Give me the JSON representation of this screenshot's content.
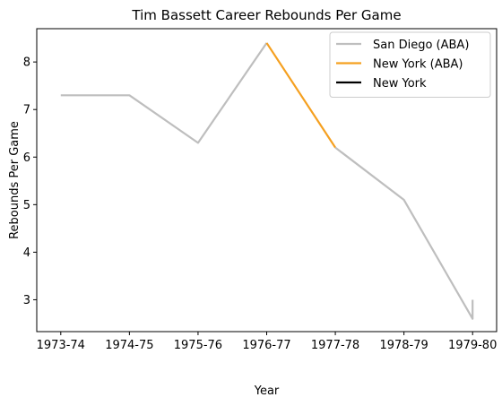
{
  "chart_data": {
    "type": "line",
    "title": "Tim Bassett Career Rebounds Per Game",
    "xlabel": "Year",
    "ylabel": "Rebounds Per Game",
    "categories": [
      "1973-74",
      "1974-75",
      "1975-76",
      "1976-77",
      "1977-78",
      "1978-79",
      "1979-80"
    ],
    "xlim": [
      -0.35,
      6.35
    ],
    "ylim": [
      2.33,
      8.7
    ],
    "yticks": [
      3,
      4,
      5,
      6,
      7,
      8
    ],
    "grid": false,
    "legend_position": "top-right",
    "series": [
      {
        "name": "San Diego (ABA)",
        "color": "#bebebe",
        "points": [
          [
            0,
            7.3
          ],
          [
            1,
            7.3
          ],
          [
            2,
            6.3
          ],
          [
            3,
            8.4
          ]
        ]
      },
      {
        "name": "New York (ABA)",
        "color": "#f5a020",
        "points": [
          [
            3,
            8.4
          ],
          [
            4,
            6.2
          ]
        ]
      },
      {
        "name": "New York",
        "color": "#000000",
        "points": []
      },
      {
        "name": "",
        "color": "#bebebe",
        "points": [
          [
            4,
            6.2
          ],
          [
            5,
            5.1
          ],
          [
            6,
            2.6
          ],
          [
            6,
            3.0
          ]
        ]
      }
    ]
  }
}
